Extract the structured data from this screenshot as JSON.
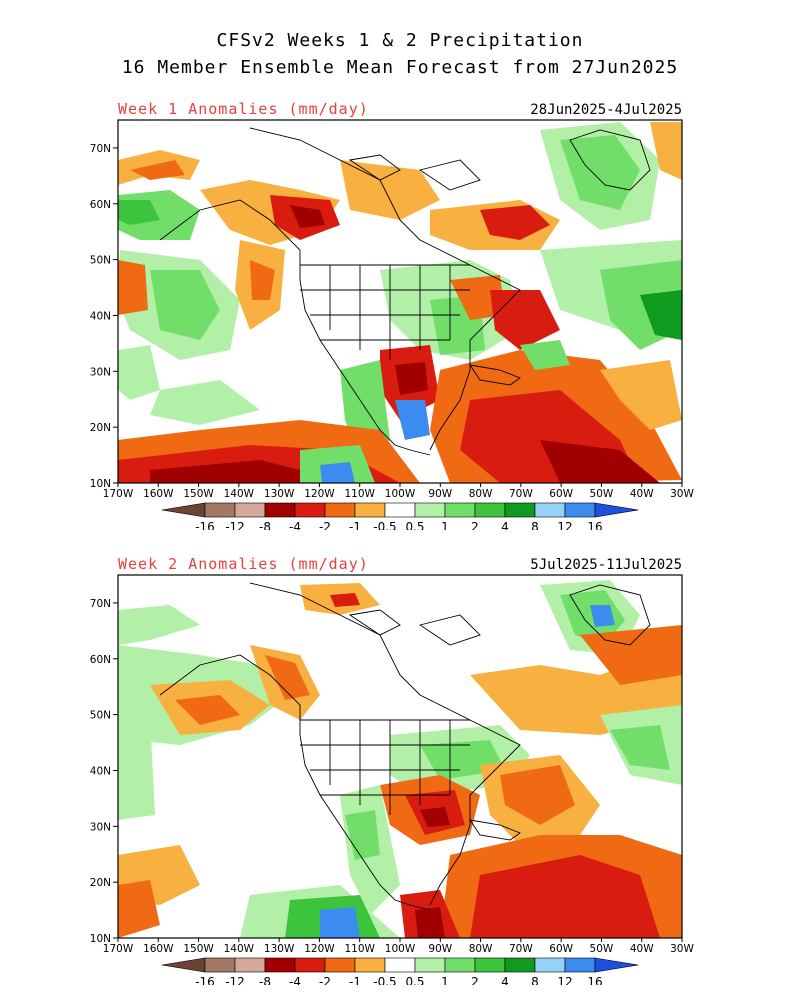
{
  "title": {
    "line1": "CFSv2 Weeks 1 & 2 Precipitation",
    "line2": "16 Member Ensemble Mean Forecast from 27Jun2025"
  },
  "panels": [
    {
      "label": "Week 1 Anomalies (mm/day)",
      "dates": "28Jun2025-4Jul2025"
    },
    {
      "label": "Week 2 Anomalies (mm/day)",
      "dates": "5Jul2025-11Jul2025"
    }
  ],
  "lat_ticks": [
    "10N",
    "20N",
    "30N",
    "40N",
    "50N",
    "60N",
    "70N"
  ],
  "lon_ticks": [
    "170W",
    "160W",
    "150W",
    "140W",
    "130W",
    "120W",
    "110W",
    "100W",
    "90W",
    "80W",
    "70W",
    "60W",
    "50W",
    "40W",
    "30W"
  ],
  "colorbar": {
    "labels": [
      "-16",
      "-12",
      "-8",
      "-4",
      "-2",
      "-1",
      "-0.5",
      "0.5",
      "1",
      "2",
      "4",
      "8",
      "12",
      "16"
    ],
    "colors": [
      "#6b4234",
      "#a47866",
      "#d4a89a",
      "#a00000",
      "#d81d10",
      "#f06a14",
      "#f8b040",
      "#ffffff",
      "#b2f0a8",
      "#72de6a",
      "#3cc43c",
      "#0f9a20",
      "#96d2f8",
      "#3c8cf0",
      "#1e50e0"
    ]
  },
  "field_colors": {
    "dry_1": "#f8b040",
    "dry_2": "#f06a14",
    "dry_4": "#d81d10",
    "dry_8": "#a00000",
    "wet_1": "#b2f0a8",
    "wet_2": "#72de6a",
    "wet_4": "#3cc43c",
    "wet_8": "#0f9a20",
    "wet_12": "#96d2f8",
    "wet_16": "#3c8cf0"
  }
}
